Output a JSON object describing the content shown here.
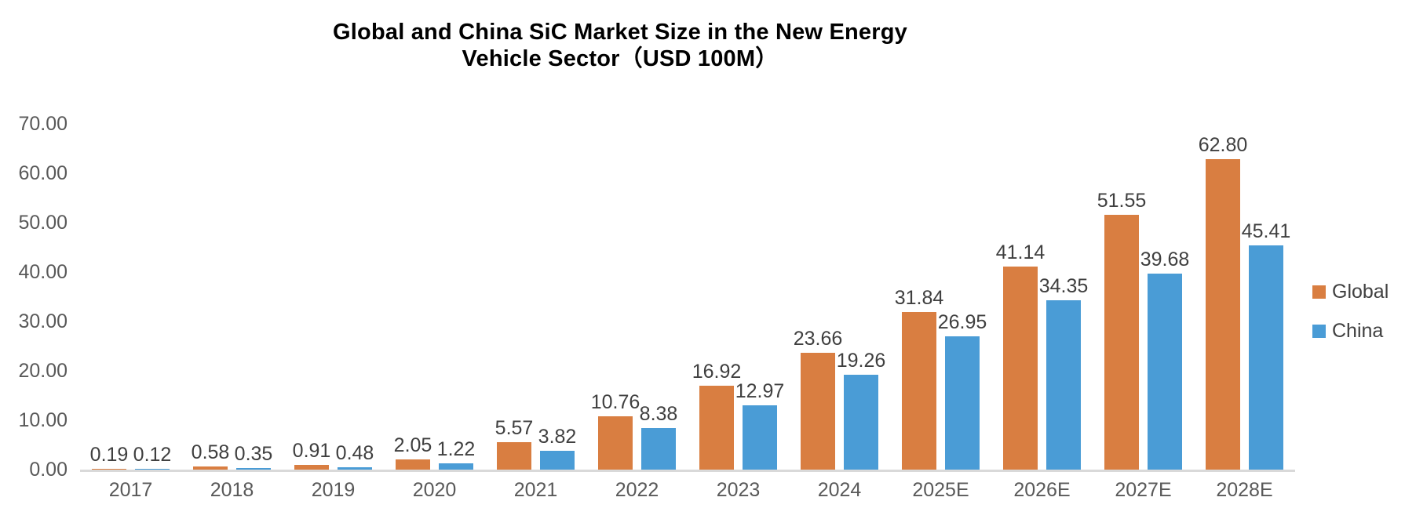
{
  "title": {
    "line1": "Global and China SiC Market Size in the New Energy",
    "line2": "Vehicle Sector（USD 100M）"
  },
  "colors": {
    "global_series": "#D97E41",
    "china_series": "#4A9CD6",
    "axis_text": "#595959",
    "data_label_text": "#3F3F3F",
    "axis_line": "#D9D9D9",
    "title_text": "#000000",
    "background": "#FFFFFF"
  },
  "chart_data": {
    "type": "bar",
    "title": "Global and China SiC Market Size in the New Energy Vehicle Sector（USD 100M）",
    "categories": [
      "2017",
      "2018",
      "2019",
      "2020",
      "2021",
      "2022",
      "2023",
      "2024",
      "2025E",
      "2026E",
      "2027E",
      "2028E"
    ],
    "series": [
      {
        "name": "Global",
        "color": "#D97E41",
        "values": [
          0.19,
          0.58,
          0.91,
          2.05,
          5.57,
          10.76,
          16.92,
          23.66,
          31.84,
          41.14,
          51.55,
          62.8
        ]
      },
      {
        "name": "China",
        "color": "#4A9CD6",
        "values": [
          0.12,
          0.35,
          0.48,
          1.22,
          3.82,
          8.38,
          12.97,
          19.26,
          26.95,
          34.35,
          39.68,
          45.41
        ]
      }
    ],
    "data_labels": {
      "Global": [
        "0.19",
        "0.58",
        "0.91",
        "2.05",
        "5.57",
        "10.76",
        "16.92",
        "23.66",
        "31.84",
        "41.14",
        "51.55",
        "62.80"
      ],
      "China": [
        "0.12",
        "0.35",
        "0.48",
        "1.22",
        "3.82",
        "8.38",
        "12.97",
        "19.26",
        "26.95",
        "34.35",
        "39.68",
        "45.41"
      ]
    },
    "xlabel": "",
    "ylabel": "",
    "ylim": [
      0,
      70
    ],
    "yticks": [
      "70.00",
      "60.00",
      "50.00",
      "40.00",
      "30.00",
      "20.00",
      "10.00",
      "0.00"
    ],
    "grid": false,
    "legend_position": "right",
    "legend": [
      "Global",
      "China"
    ]
  }
}
